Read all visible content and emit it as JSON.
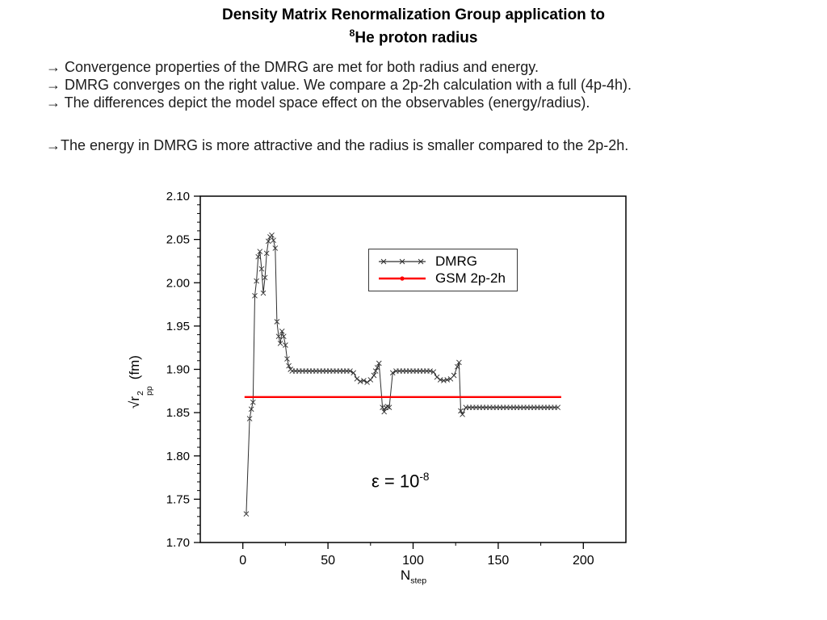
{
  "slide": {
    "title_line1": "Density Matrix Renormalization Group application to",
    "title_sup": "8",
    "title_line2": "He proton radius",
    "bullets": [
      "→ Convergence properties of the DMRG are met for both radius and energy.",
      "→ DMRG converges on the right value.  We compare a 2p-2h calculation with a full (4p-4h).",
      "→ The differences depict the model space effect on the observables (energy/radius).",
      "→The energy in DMRG is more attractive and the radius is smaller compared to the 2p-2h."
    ]
  },
  "chart_data": {
    "type": "line",
    "title": "",
    "xlabel": "N_step",
    "ylabel": "sqrt(r2_pp) (fm)",
    "xlabel_parts": {
      "base": "N",
      "sub": "step"
    },
    "ylabel_parts": {
      "root": "√r",
      "sup": "2",
      "sub": "pp",
      "unit": "(fm)"
    },
    "xlim": [
      -25,
      225
    ],
    "ylim": [
      1.7,
      2.1
    ],
    "x_ticks": [
      0,
      50,
      100,
      150,
      200
    ],
    "x_minor_step": 25,
    "y_ticks": [
      1.7,
      1.75,
      1.8,
      1.85,
      1.9,
      1.95,
      2.0,
      2.05,
      2.1
    ],
    "y_minor_step": 0.01,
    "grid": false,
    "legend_position": "upper-center-right",
    "legend": [
      {
        "label": "DMRG",
        "color": "#2f2f2f",
        "marker": "x"
      },
      {
        "label": "GSM 2p-2h",
        "color": "#ff0000",
        "marker": "dot"
      }
    ],
    "annotation": {
      "base": "ε = 10",
      "exp": "-8"
    },
    "series": [
      {
        "name": "DMRG",
        "color": "#2f2f2f",
        "marker": "x",
        "width": 1,
        "points": [
          [
            2,
            1.733
          ],
          [
            4,
            1.843
          ],
          [
            5,
            1.854
          ],
          [
            6,
            1.862
          ],
          [
            7,
            1.985
          ],
          [
            8,
            2.002
          ],
          [
            9,
            2.03
          ],
          [
            10,
            2.036
          ],
          [
            11,
            2.016
          ],
          [
            12,
            1.988
          ],
          [
            13,
            2.006
          ],
          [
            14,
            2.034
          ],
          [
            15,
            2.048
          ],
          [
            16,
            2.053
          ],
          [
            17,
            2.055
          ],
          [
            18,
            2.049
          ],
          [
            19,
            2.04
          ],
          [
            20,
            1.955
          ],
          [
            21,
            1.938
          ],
          [
            22,
            1.93
          ],
          [
            23,
            1.944
          ],
          [
            24,
            1.938
          ],
          [
            25,
            1.928
          ],
          [
            26,
            1.912
          ],
          [
            27,
            1.904
          ],
          [
            28,
            1.9
          ],
          [
            29,
            1.898
          ],
          [
            31,
            1.898
          ],
          [
            33,
            1.898
          ],
          [
            35,
            1.898
          ],
          [
            37,
            1.898
          ],
          [
            39,
            1.898
          ],
          [
            41,
            1.898
          ],
          [
            43,
            1.898
          ],
          [
            45,
            1.898
          ],
          [
            47,
            1.898
          ],
          [
            49,
            1.898
          ],
          [
            51,
            1.898
          ],
          [
            53,
            1.898
          ],
          [
            55,
            1.898
          ],
          [
            57,
            1.898
          ],
          [
            59,
            1.898
          ],
          [
            61,
            1.898
          ],
          [
            63,
            1.898
          ],
          [
            65,
            1.896
          ],
          [
            67,
            1.889
          ],
          [
            69,
            1.886
          ],
          [
            71,
            1.887
          ],
          [
            73,
            1.885
          ],
          [
            75,
            1.888
          ],
          [
            77,
            1.893
          ],
          [
            78,
            1.898
          ],
          [
            79,
            1.902
          ],
          [
            80,
            1.907
          ],
          [
            82,
            1.856
          ],
          [
            83,
            1.851
          ],
          [
            84,
            1.856
          ],
          [
            85,
            1.857
          ],
          [
            86,
            1.856
          ],
          [
            88,
            1.896
          ],
          [
            90,
            1.898
          ],
          [
            92,
            1.898
          ],
          [
            94,
            1.898
          ],
          [
            96,
            1.898
          ],
          [
            98,
            1.898
          ],
          [
            100,
            1.898
          ],
          [
            102,
            1.898
          ],
          [
            104,
            1.898
          ],
          [
            106,
            1.898
          ],
          [
            108,
            1.898
          ],
          [
            110,
            1.898
          ],
          [
            112,
            1.897
          ],
          [
            114,
            1.891
          ],
          [
            116,
            1.888
          ],
          [
            118,
            1.887
          ],
          [
            120,
            1.888
          ],
          [
            122,
            1.889
          ],
          [
            124,
            1.893
          ],
          [
            126,
            1.903
          ],
          [
            127,
            1.908
          ],
          [
            128,
            1.852
          ],
          [
            129,
            1.848
          ],
          [
            131,
            1.856
          ],
          [
            133,
            1.856
          ],
          [
            135,
            1.856
          ],
          [
            137,
            1.856
          ],
          [
            139,
            1.856
          ],
          [
            141,
            1.856
          ],
          [
            143,
            1.856
          ],
          [
            145,
            1.856
          ],
          [
            147,
            1.856
          ],
          [
            149,
            1.856
          ],
          [
            151,
            1.856
          ],
          [
            153,
            1.856
          ],
          [
            155,
            1.856
          ],
          [
            157,
            1.856
          ],
          [
            159,
            1.856
          ],
          [
            161,
            1.856
          ],
          [
            163,
            1.856
          ],
          [
            165,
            1.856
          ],
          [
            167,
            1.856
          ],
          [
            169,
            1.856
          ],
          [
            171,
            1.856
          ],
          [
            173,
            1.856
          ],
          [
            175,
            1.856
          ],
          [
            177,
            1.856
          ],
          [
            179,
            1.856
          ],
          [
            181,
            1.856
          ],
          [
            183,
            1.856
          ],
          [
            185,
            1.856
          ]
        ]
      },
      {
        "name": "GSM 2p-2h",
        "color": "#ff0000",
        "marker": "none",
        "width": 2.4,
        "points": [
          [
            1,
            1.868
          ],
          [
            187,
            1.868
          ]
        ]
      }
    ]
  }
}
